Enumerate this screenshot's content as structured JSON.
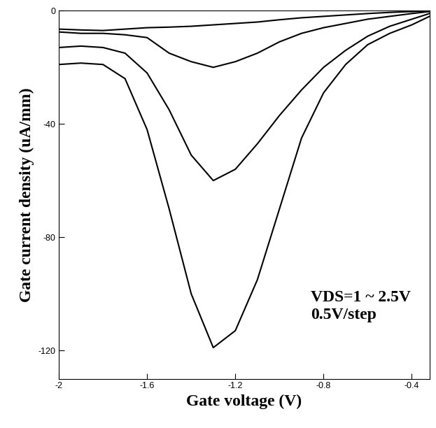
{
  "chart_data": {
    "type": "line",
    "xlabel": "Gate voltage (V)",
    "ylabel": "Gate current density (uA/mm)",
    "annotation": "VDS=1 ~ 2.5V\n0.5V/step",
    "x": [
      -2,
      -1.9,
      -1.8,
      -1.7,
      -1.6,
      -1.5,
      -1.4,
      -1.3,
      -1.2,
      -1.1,
      -1.0,
      -0.9,
      -0.8,
      -0.7,
      -0.6,
      -0.5,
      -0.4,
      -0.32
    ],
    "series": [
      {
        "color": "#000000",
        "values": [
          -6.5,
          -6.8,
          -7,
          -6.5,
          -6,
          -5.8,
          -5.5,
          -5,
          -4.5,
          -4,
          -3.2,
          -2.5,
          -2,
          -1.5,
          -1,
          -0.6,
          -0.3,
          0
        ]
      },
      {
        "color": "#000000",
        "values": [
          -7.5,
          -8,
          -8,
          -8.5,
          -9.5,
          -15,
          -18,
          -20,
          -18,
          -15,
          -11,
          -8,
          -6,
          -4.5,
          -3,
          -2,
          -1,
          -0.3
        ]
      },
      {
        "color": "#000000",
        "values": [
          -13,
          -12.5,
          -13,
          -15,
          -22,
          -35,
          -51,
          -60,
          -56,
          -47,
          -37,
          -28,
          -20,
          -14,
          -9,
          -5.5,
          -3,
          -1
        ]
      },
      {
        "color": "#000000",
        "values": [
          -19,
          -18.5,
          -19,
          -24,
          -42,
          -70,
          -100,
          -119,
          -113,
          -95,
          -70,
          -45,
          -29,
          -19,
          -12,
          -8,
          -5,
          -2
        ]
      }
    ],
    "xlim": [
      -2,
      -0.32
    ],
    "xticks": [
      -2,
      -1.6,
      -1.2,
      -0.8,
      -0.4
    ],
    "ylim": [
      -130,
      0
    ],
    "yticks": [
      0,
      -40,
      -80,
      -120
    ],
    "grid": false
  }
}
